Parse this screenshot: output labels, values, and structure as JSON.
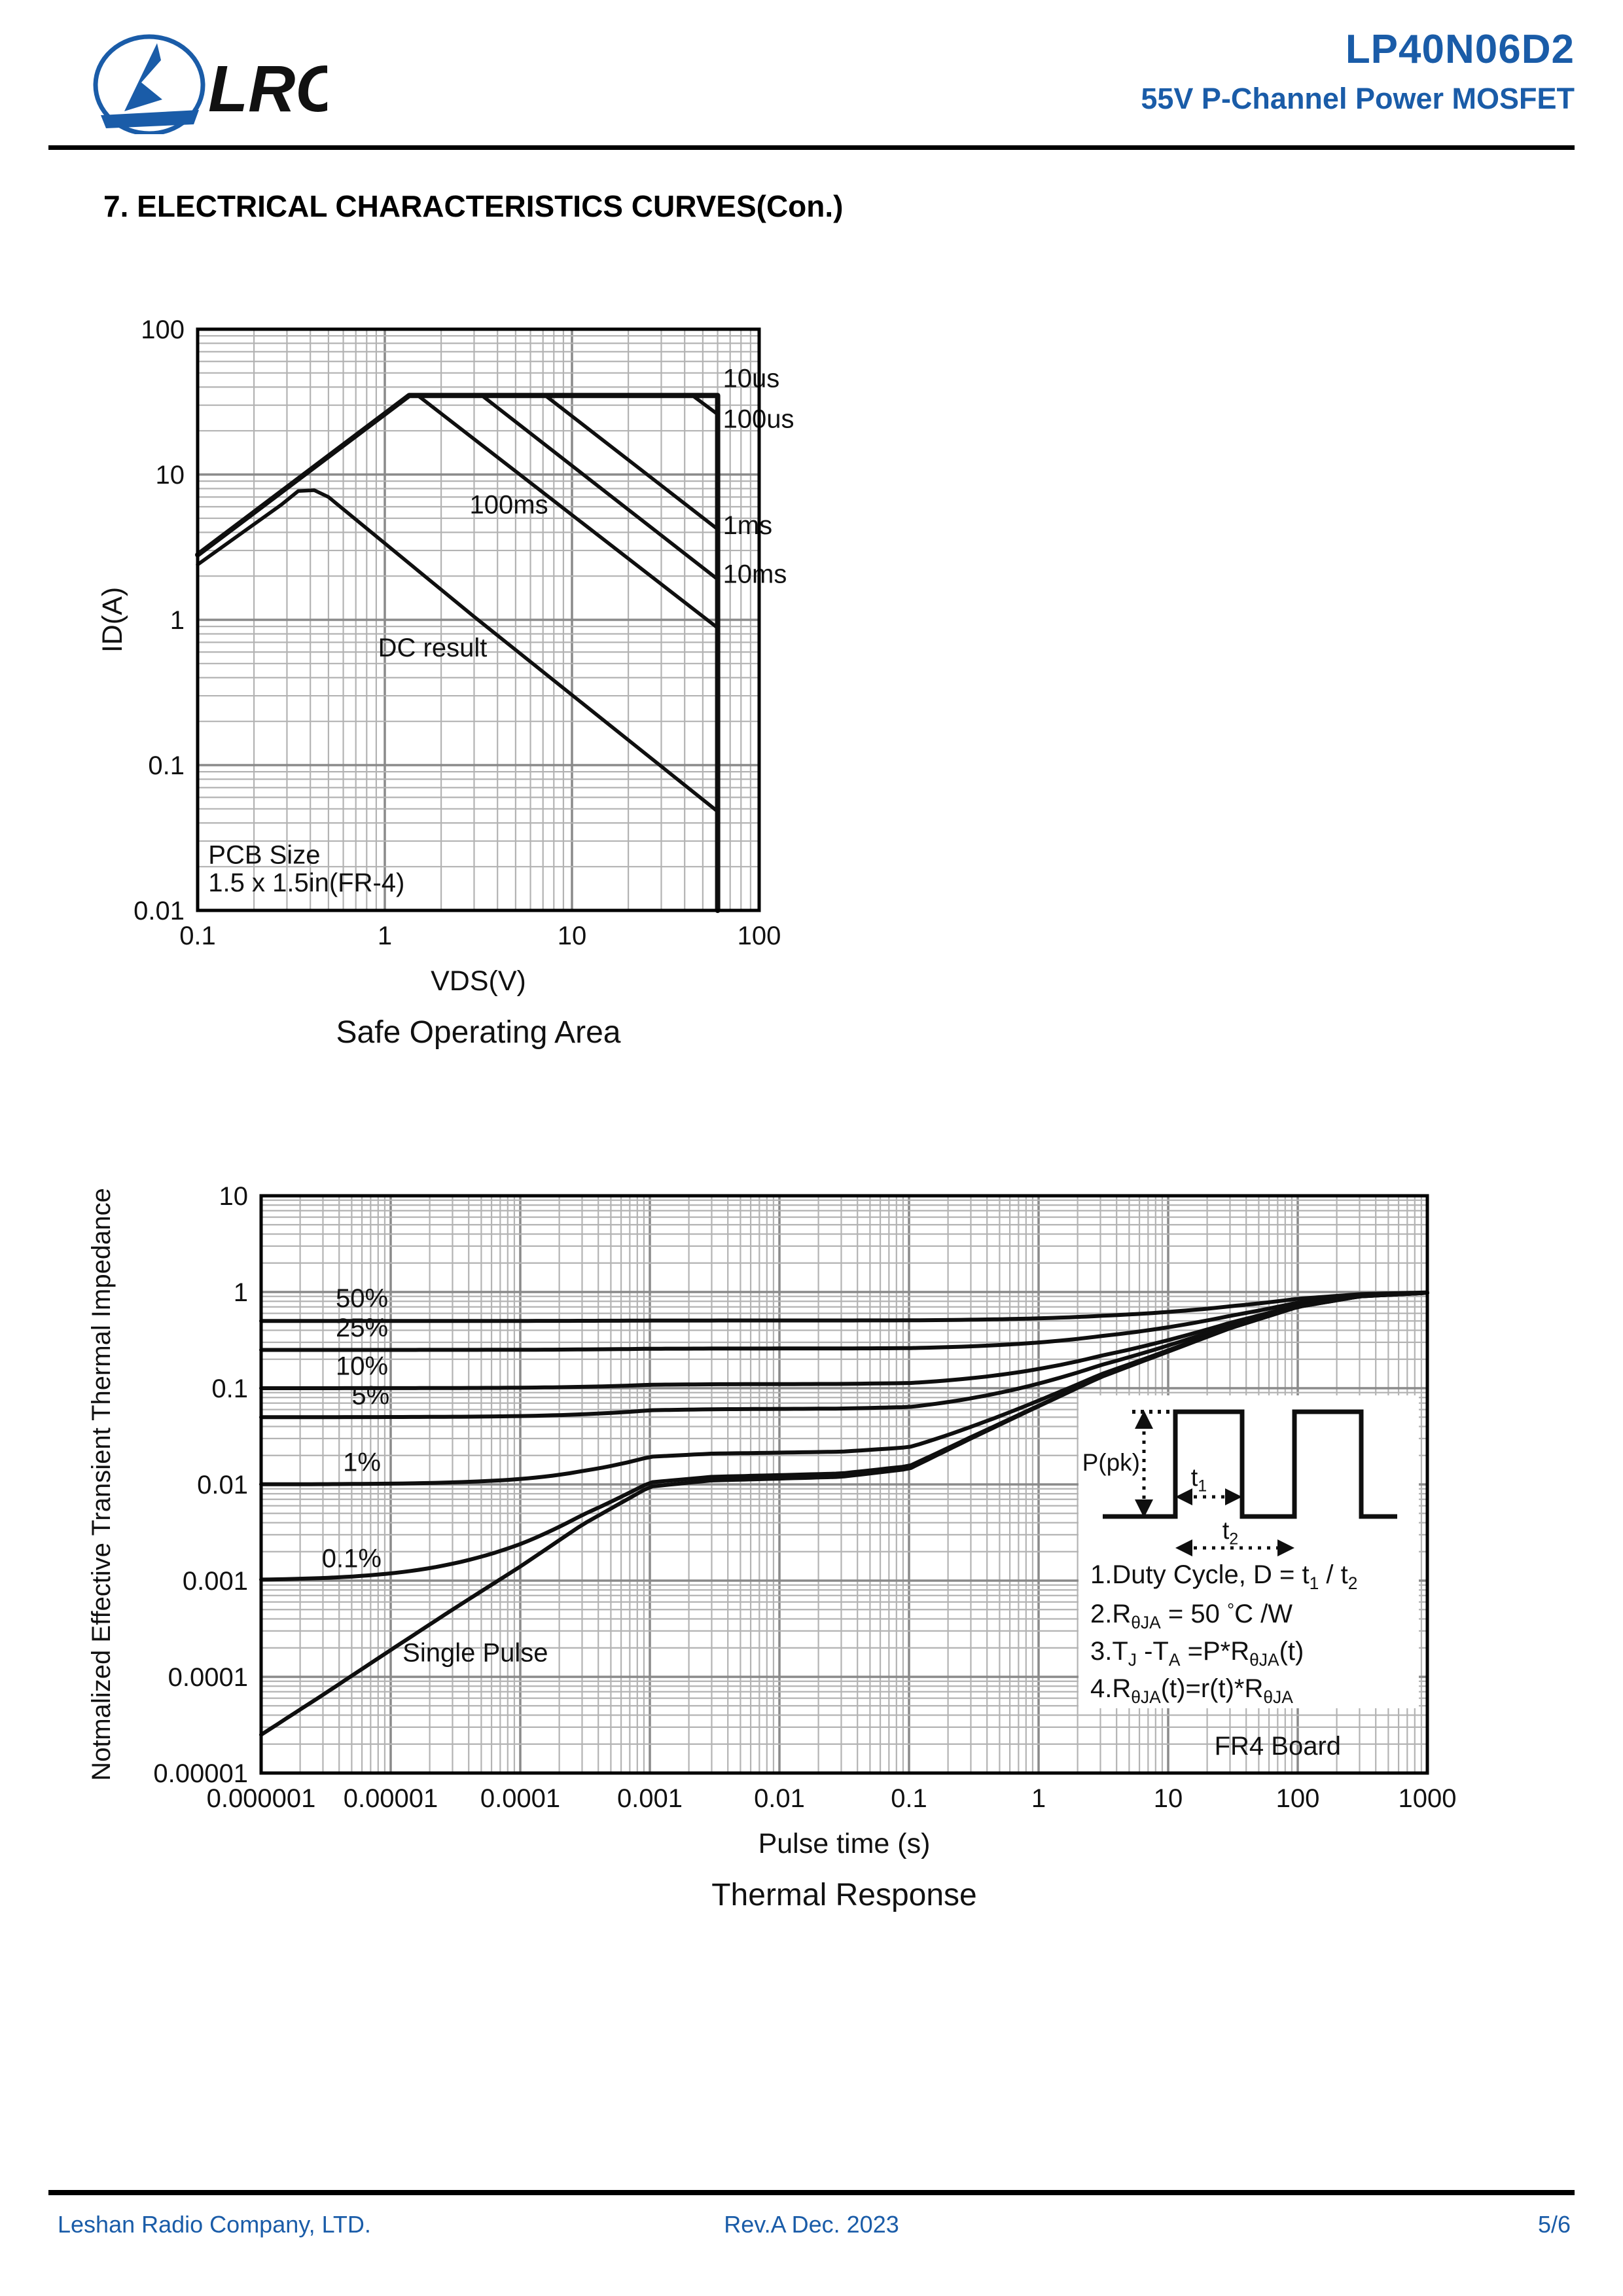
{
  "header": {
    "logo_text": "LRC",
    "product": "LP40N06D2",
    "subtitle": "55V P-Channel Power MOSFET"
  },
  "section_title": "7. ELECTRICAL CHARACTERISTICS CURVES(Con.)",
  "footer": {
    "company": "Leshan Radio Company, LTD.",
    "revision": "Rev.A   Dec.  2023",
    "page": "5/6"
  },
  "colors": {
    "brand_blue": "#1a5ca8",
    "curve_black": "#0f0f0f",
    "grid_minor": "#b3b3b3",
    "grid_major": "#8a8a8a"
  },
  "chart_data": [
    {
      "id": "soa",
      "type": "line",
      "title": "Safe Operating Area",
      "xlabel": "VDS(V)",
      "ylabel": "ID(A)",
      "log_x": true,
      "log_y": true,
      "grid": true,
      "xlim": [
        0.1,
        100
      ],
      "ylim": [
        0.01,
        100
      ],
      "x_ticks": [
        "0.1",
        "1",
        "10",
        "100"
      ],
      "y_ticks": [
        "100",
        "10",
        "1",
        "0.1",
        "0.01"
      ],
      "px": {
        "x0": 242,
        "y0": 63,
        "dw": 286,
        "dh": 222
      },
      "series": [
        {
          "name": "10us",
          "width": 8,
          "points": [
            [
              0.1,
              2.8
            ],
            [
              1.35,
              35
            ],
            [
              60,
              35
            ],
            [
              60,
              0.01
            ]
          ]
        },
        {
          "name": "100us",
          "width": 5.5,
          "points": [
            [
              44,
              35
            ],
            [
              60,
              26
            ]
          ]
        },
        {
          "name": "1ms",
          "width": 5.5,
          "points": [
            [
              7.2,
              35
            ],
            [
              60,
              4.2
            ]
          ]
        },
        {
          "name": "10ms",
          "width": 5.5,
          "points": [
            [
              3.3,
              35
            ],
            [
              60,
              1.9
            ]
          ]
        },
        {
          "name": "100ms",
          "width": 5.5,
          "points": [
            [
              1.5,
              35
            ],
            [
              60,
              0.88
            ]
          ]
        },
        {
          "name": "DC",
          "width": 5.5,
          "points": [
            [
              0.1,
              2.4
            ],
            [
              0.28,
              6.2
            ],
            [
              0.345,
              7.7
            ],
            [
              0.42,
              7.8
            ],
            [
              0.5,
              7.0
            ],
            [
              3,
              1.05
            ],
            [
              60,
              0.048
            ]
          ]
        }
      ],
      "labels": [
        {
          "text": "10us",
          "x": 64,
          "y": 40,
          "anchor": "start",
          "size": 40
        },
        {
          "text": "100us",
          "x": 64,
          "y": 21,
          "anchor": "start",
          "size": 40
        },
        {
          "text": "1ms",
          "x": 64,
          "y": 3.9,
          "anchor": "start",
          "size": 40
        },
        {
          "text": "10ms",
          "x": 64,
          "y": 1.8,
          "anchor": "start",
          "size": 40
        },
        {
          "text": "100ms",
          "x": 4.6,
          "y": 5.4,
          "anchor": "middle",
          "size": 40
        },
        {
          "text": "DC result",
          "x": 1.8,
          "y": 0.56,
          "anchor": "middle",
          "size": 40
        },
        {
          "text": "PCB Size",
          "x": 0.114,
          "y": 0.021,
          "anchor": "start",
          "size": 40
        },
        {
          "text": "1.5 x 1.5in(FR-4)",
          "x": 0.114,
          "y": 0.0135,
          "anchor": "start",
          "size": 40
        }
      ]
    },
    {
      "id": "thermal",
      "type": "line",
      "title": "Thermal Response",
      "xlabel": "Pulse time (s)",
      "ylabel": "Notmalized Effective Transient Thermal Impedance",
      "log_x": true,
      "log_y": true,
      "grid": true,
      "xlim": [
        1e-06,
        1000
      ],
      "ylim": [
        1e-05,
        10
      ],
      "x_ticks": [
        "0.000001",
        "0.00001",
        "0.0001",
        "0.001",
        "0.01",
        "0.1",
        "1",
        "10",
        "100",
        "1000"
      ],
      "y_ticks": [
        "10",
        "1",
        "0.1",
        "0.01",
        "0.001",
        "0.0001",
        "0.00001"
      ],
      "px": {
        "x0": 319,
        "y0": 72,
        "dw": 198,
        "dh": 147
      },
      "duty_cycles": [
        {
          "label": "50%",
          "value": 0.5
        },
        {
          "label": "25%",
          "value": 0.25
        },
        {
          "label": "10%",
          "value": 0.1
        },
        {
          "label": "5%",
          "value": 0.05
        },
        {
          "label": "1%",
          "value": 0.01
        },
        {
          "label": "0.1%",
          "value": 0.001
        }
      ],
      "single_pulse_name": "Single Pulse",
      "single_pulse_points": [
        [
          1e-06,
          2.5e-05
        ],
        [
          3e-06,
          6.5e-05
        ],
        [
          1e-05,
          0.00019
        ],
        [
          3e-05,
          0.0005
        ],
        [
          0.0001,
          0.0014
        ],
        [
          0.0003,
          0.0038
        ],
        [
          0.001,
          0.0095
        ],
        [
          0.003,
          0.011
        ],
        [
          0.01,
          0.0115
        ],
        [
          0.03,
          0.012
        ],
        [
          0.1,
          0.0145
        ],
        [
          0.3,
          0.03
        ],
        [
          1,
          0.065
        ],
        [
          3,
          0.13
        ],
        [
          10,
          0.24
        ],
        [
          30,
          0.42
        ],
        [
          100,
          0.7
        ],
        [
          300,
          0.9
        ],
        [
          1000,
          0.98
        ]
      ],
      "labels": [
        {
          "text": "50%",
          "x": 6e-06,
          "y": 0.7,
          "anchor": "middle",
          "size": 40
        },
        {
          "text": "25%",
          "x": 6e-06,
          "y": 0.345,
          "anchor": "middle",
          "size": 40
        },
        {
          "text": "10%",
          "x": 6e-06,
          "y": 0.138,
          "anchor": "middle",
          "size": 40
        },
        {
          "text": "5%",
          "x": 7e-06,
          "y": 0.068,
          "anchor": "middle",
          "size": 40
        },
        {
          "text": "1%",
          "x": 6e-06,
          "y": 0.0138,
          "anchor": "middle",
          "size": 40
        },
        {
          "text": "0.1%",
          "x": 5e-06,
          "y": 0.00138,
          "anchor": "middle",
          "size": 40
        },
        {
          "text": "Single Pulse",
          "x": 4.5e-05,
          "y": 0.000145,
          "anchor": "middle",
          "size": 40
        },
        {
          "text": "FR4 Board",
          "x": 70,
          "y": 1.55e-05,
          "anchor": "middle",
          "size": 40
        }
      ],
      "inset": {
        "pk_label": "P(pk)",
        "t1": [
          {
            "t": "t"
          },
          {
            "s": "1"
          }
        ],
        "t2": [
          {
            "t": "t"
          },
          {
            "s": "2"
          }
        ],
        "notes": [
          [
            {
              "t": "1.Duty Cycle, D = t"
            },
            {
              "s": "1"
            },
            {
              "t": " / t"
            },
            {
              "s": "2"
            }
          ],
          [
            {
              "t": "2.R"
            },
            {
              "s": "θJA"
            },
            {
              "t": " = 50 "
            },
            {
              "sup": "°"
            },
            {
              "t": "C /W"
            }
          ],
          [
            {
              "t": "3.T"
            },
            {
              "s": "J"
            },
            {
              "t": " -T"
            },
            {
              "s": "A"
            },
            {
              "t": " =P*R"
            },
            {
              "s": "θJA"
            },
            {
              "t": "(t)"
            }
          ],
          [
            {
              "t": "4.R"
            },
            {
              "s": "θJA"
            },
            {
              "t": "(t)=r(t)*R"
            },
            {
              "s": "θJA"
            }
          ]
        ]
      }
    }
  ]
}
